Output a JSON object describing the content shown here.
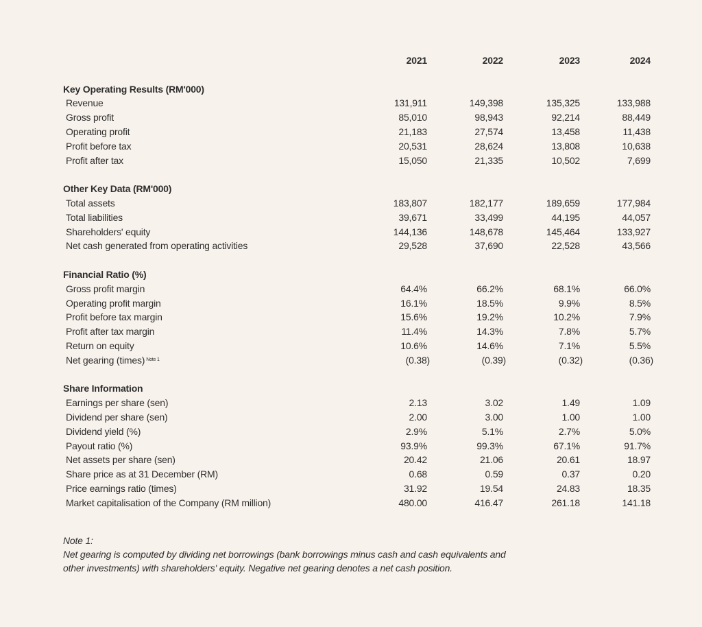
{
  "years": [
    "2021",
    "2022",
    "2023",
    "2024"
  ],
  "sections": [
    {
      "title": "Key Operating Results (RM'000)",
      "rows": [
        {
          "label": "Revenue",
          "values": [
            "131,911",
            "149,398",
            "135,325",
            "133,988"
          ]
        },
        {
          "label": "Gross profit",
          "values": [
            "85,010",
            "98,943",
            "92,214",
            "88,449"
          ]
        },
        {
          "label": "Operating profit",
          "values": [
            "21,183",
            "27,574",
            "13,458",
            "11,438"
          ]
        },
        {
          "label": "Profit before tax",
          "values": [
            "20,531",
            "28,624",
            "13,808",
            "10,638"
          ]
        },
        {
          "label": "Profit after tax",
          "values": [
            "15,050",
            "21,335",
            "10,502",
            "7,699"
          ]
        }
      ]
    },
    {
      "title": "Other Key Data (RM'000)",
      "rows": [
        {
          "label": "Total assets",
          "values": [
            "183,807",
            "182,177",
            "189,659",
            "177,984"
          ]
        },
        {
          "label": "Total liabilities",
          "values": [
            "39,671",
            "33,499",
            "44,195",
            "44,057"
          ]
        },
        {
          "label": "Shareholders' equity",
          "values": [
            "144,136",
            "148,678",
            "145,464",
            "133,927"
          ]
        },
        {
          "label": "Net cash generated from operating activities",
          "values": [
            "29,528",
            "37,690",
            "22,528",
            "43,566"
          ]
        }
      ]
    },
    {
      "title": "Financial Ratio (%)",
      "rows": [
        {
          "label": "Gross profit margin",
          "values": [
            "64.4%",
            "66.2%",
            "68.1%",
            "66.0%"
          ]
        },
        {
          "label": "Operating profit margin",
          "values": [
            "16.1%",
            "18.5%",
            "9.9%",
            "8.5%"
          ]
        },
        {
          "label": "Profit before tax margin",
          "values": [
            "15.6%",
            "19.2%",
            "10.2%",
            "7.9%"
          ]
        },
        {
          "label": "Profit after tax margin",
          "values": [
            "11.4%",
            "14.3%",
            "7.8%",
            "5.7%"
          ]
        },
        {
          "label": "Return on equity",
          "values": [
            "10.6%",
            "14.6%",
            "7.1%",
            "5.5%"
          ]
        },
        {
          "label": "Net gearing (times)",
          "sup": "Note 1",
          "values": [
            "(0.38)",
            "(0.39)",
            "(0.32)",
            "(0.36)"
          ]
        }
      ]
    },
    {
      "title": "Share Information",
      "rows": [
        {
          "label": "Earnings per share (sen)",
          "values": [
            "2.13",
            "3.02",
            "1.49",
            "1.09"
          ]
        },
        {
          "label": "Dividend per share (sen)",
          "values": [
            "2.00",
            "3.00",
            "1.00",
            "1.00"
          ]
        },
        {
          "label": "Dividend yield (%)",
          "values": [
            "2.9%",
            "5.1%",
            "2.7%",
            "5.0%"
          ]
        },
        {
          "label": "Payout ratio (%)",
          "values": [
            "93.9%",
            "99.3%",
            "67.1%",
            "91.7%"
          ]
        },
        {
          "label": "Net assets per share (sen)",
          "values": [
            "20.42",
            "21.06",
            "20.61",
            "18.97"
          ]
        },
        {
          "label": "Share price as at 31 December (RM)",
          "values": [
            "0.68",
            "0.59",
            "0.37",
            "0.20"
          ]
        },
        {
          "label": "Price earnings ratio (times)",
          "values": [
            "31.92",
            "19.54",
            "24.83",
            "18.35"
          ]
        },
        {
          "label": "Market capitalisation of the Company (RM million)",
          "values": [
            "480.00",
            "416.47",
            "261.18",
            "141.18"
          ]
        }
      ]
    }
  ],
  "note": {
    "title": "Note 1:",
    "line1": "Net gearing is computed by dividing net borrowings (bank borrowings minus cash and cash equivalents and",
    "line2": "other investments) with shareholders' equity. Negative net gearing denotes a net cash position."
  }
}
